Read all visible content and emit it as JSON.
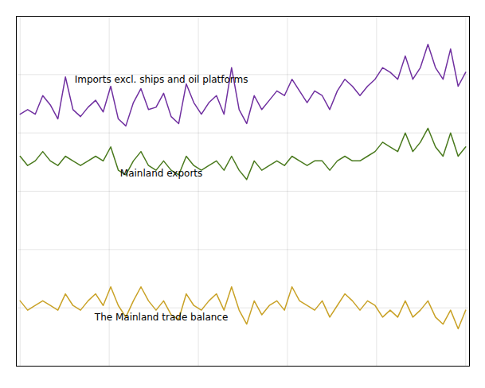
{
  "chart_data": {
    "type": "line",
    "x": [
      0,
      1,
      2,
      3,
      4,
      5,
      6,
      7,
      8,
      9,
      10,
      11,
      12,
      13,
      14,
      15,
      16,
      17,
      18,
      19,
      20,
      21,
      22,
      23,
      24,
      25,
      26,
      27,
      28,
      29,
      30,
      31,
      32,
      33,
      34,
      35,
      36,
      37,
      38,
      39,
      40,
      41,
      42,
      43,
      44,
      45,
      46,
      47,
      48,
      49,
      50,
      51,
      52,
      53,
      54,
      55,
      56,
      57,
      58,
      59
    ],
    "series": [
      {
        "name": "Imports excl. ships and oil platforms",
        "color": "#7030a0",
        "values": [
          58,
          60,
          58,
          66,
          62,
          56,
          74,
          60,
          57,
          61,
          64,
          59,
          70,
          56,
          53,
          63,
          69,
          60,
          61,
          67,
          57,
          54,
          71,
          63,
          58,
          63,
          66,
          58,
          78,
          60,
          54,
          66,
          60,
          64,
          68,
          66,
          73,
          68,
          63,
          68,
          66,
          60,
          68,
          73,
          70,
          66,
          70,
          73,
          78,
          76,
          73,
          83,
          73,
          78,
          88,
          78,
          73,
          86,
          70,
          76
        ]
      },
      {
        "name": "Mainland exports",
        "color": "#4a7a1e",
        "values": [
          40,
          36,
          38,
          42,
          38,
          36,
          40,
          38,
          36,
          38,
          40,
          38,
          44,
          34,
          32,
          38,
          42,
          36,
          34,
          38,
          34,
          32,
          40,
          36,
          34,
          36,
          38,
          34,
          40,
          34,
          30,
          38,
          34,
          36,
          38,
          36,
          40,
          38,
          36,
          38,
          38,
          34,
          38,
          40,
          38,
          38,
          40,
          42,
          46,
          44,
          42,
          50,
          42,
          46,
          52,
          44,
          40,
          50,
          40,
          44
        ]
      },
      {
        "name": "The Mainland trade balance",
        "color": "#c9a227",
        "values": [
          -22,
          -26,
          -24,
          -22,
          -24,
          -26,
          -19,
          -24,
          -26,
          -22,
          -19,
          -24,
          -16,
          -24,
          -29,
          -22,
          -16,
          -22,
          -26,
          -22,
          -28,
          -30,
          -19,
          -24,
          -26,
          -22,
          -19,
          -26,
          -16,
          -26,
          -32,
          -22,
          -28,
          -24,
          -22,
          -26,
          -16,
          -22,
          -24,
          -26,
          -22,
          -29,
          -24,
          -19,
          -22,
          -26,
          -22,
          -24,
          -29,
          -26,
          -29,
          -22,
          -29,
          -26,
          -22,
          -29,
          -32,
          -26,
          -34,
          -26
        ]
      }
    ],
    "xlim": [
      -0.5,
      59.5
    ],
    "xticks": [
      0,
      11.8,
      23.6,
      35.4,
      47.2,
      59
    ],
    "ylim": [
      -50,
      100
    ],
    "yticks": [
      -50,
      -25,
      0,
      25,
      50,
      75,
      100
    ],
    "grid": true,
    "tick_labels": false
  }
}
